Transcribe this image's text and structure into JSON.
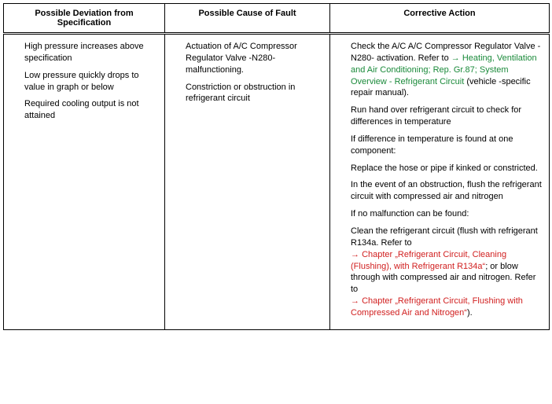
{
  "headers": {
    "c1": "Possible Deviation from Specification",
    "c2": "Possible Cause of Fault",
    "c3": "Corrective Action"
  },
  "col1": {
    "i0": "High pressure increases above specification",
    "i1": "Low pressure quickly drops to value in graph or below",
    "i2": "Required cooling output is not attained"
  },
  "col2": {
    "i0": "Actuation of A/C Compressor Regulator Valve -N280- malfunctioning.",
    "i1": "Constriction or obstruction in refrigerant circuit"
  },
  "col3": {
    "r0a": "Check the A/C A/C Compressor Regulator Valve -N280- activation. Refer to ",
    "r0arrow": "→ ",
    "r0link": "Heating, Ventilation and Air Conditioning; Rep. Gr.87; System Overview - Refrigerant Circuit",
    "r0b": " (vehicle -specific repair manual).",
    "r1": "Run hand over refrigerant circuit to check for differences in temperature",
    "r2": "If difference in temperature is found at one component:",
    "r3": "Replace the hose or pipe if kinked or constricted.",
    "r4": "In the event of an obstruction, flush the refrigerant circuit with compressed air and nitrogen",
    "r5": "If no malfunction can be found:",
    "r6a": "Clean the refrigerant circuit (flush with refrigerant R134a. Refer to ",
    "r6arrow1": "→ ",
    "r6link1": "Chapter „Refrigerant Circuit, Cleaning (Flushing), with Refrigerant R134a“",
    "r6b": "; or blow through with compressed air and nitrogen. Refer to ",
    "r6arrow2": "→ ",
    "r6link2": "Chapter „Refrigerant Circuit, Flushing with Compressed Air and Nitrogen“",
    "r6c": ")."
  }
}
